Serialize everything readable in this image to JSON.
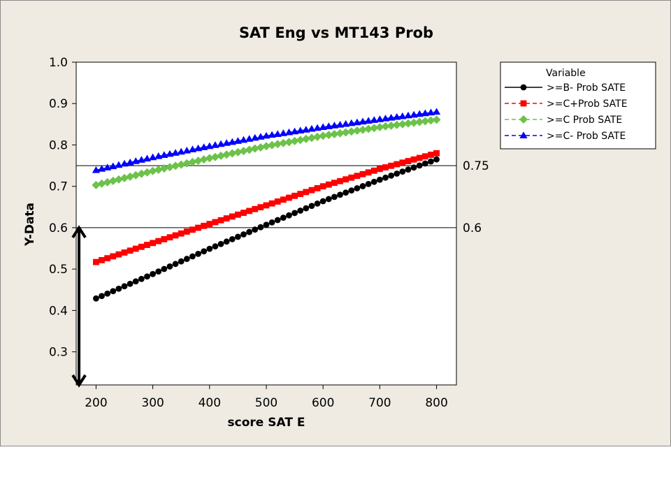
{
  "chart_data": {
    "type": "line",
    "title": "SAT Eng vs MT143 Prob",
    "xlabel": "score SAT E",
    "ylabel": "Y-Data",
    "xlim": [
      165,
      835
    ],
    "ylim": [
      0.22,
      1.0
    ],
    "x_ticks": [
      200,
      300,
      400,
      500,
      600,
      700,
      800
    ],
    "x_tick_labels": [
      "200",
      "300",
      "400",
      "500",
      "600",
      "700",
      "800"
    ],
    "y_ticks": [
      0.3,
      0.4,
      0.5,
      0.6,
      0.7,
      0.8,
      0.9,
      1.0
    ],
    "y_tick_labels": [
      "0.3",
      "0.4",
      "0.5",
      "0.6",
      "0.7",
      "0.8",
      "0.9",
      "1.0"
    ],
    "x_start": 200,
    "x_end": 800,
    "x_step": 10,
    "legend": {
      "title": "Variable",
      "position": "outside-top-right"
    },
    "series": [
      {
        "name": ">=B- Prob SATE",
        "color": "#000000",
        "marker": "circle",
        "line": "solid",
        "x": [
          200,
          300,
          400,
          500,
          600,
          700,
          800
        ],
        "values": [
          0.429,
          0.488,
          0.549,
          0.607,
          0.664,
          0.716,
          0.765
        ]
      },
      {
        "name": ">=C+Prob SATE",
        "color": "#ff0000",
        "marker": "square",
        "line": "dashed",
        "x": [
          200,
          300,
          400,
          500,
          600,
          700,
          800
        ],
        "values": [
          0.517,
          0.563,
          0.609,
          0.654,
          0.7,
          0.742,
          0.78
        ]
      },
      {
        "name": ">=C Prob SATE",
        "color": "#6cc24a",
        "marker": "diamond",
        "line": "dashed",
        "x": [
          200,
          300,
          400,
          500,
          600,
          700,
          800
        ],
        "values": [
          0.703,
          0.737,
          0.768,
          0.797,
          0.822,
          0.843,
          0.861
        ]
      },
      {
        "name": ">=C- Prob SATE",
        "color": "#0000ff",
        "marker": "triangle",
        "line": "dashed",
        "x": [
          200,
          300,
          400,
          500,
          600,
          700,
          800
        ],
        "values": [
          0.739,
          0.77,
          0.797,
          0.822,
          0.843,
          0.862,
          0.88
        ]
      }
    ],
    "reference_lines": [
      {
        "y": 0.75,
        "label": "0.75"
      },
      {
        "y": 0.6,
        "label": "0.6"
      }
    ],
    "annotations": [
      {
        "type": "double-arrow",
        "x": 170,
        "y_from": 0.6,
        "y_to": 0.22
      }
    ]
  }
}
